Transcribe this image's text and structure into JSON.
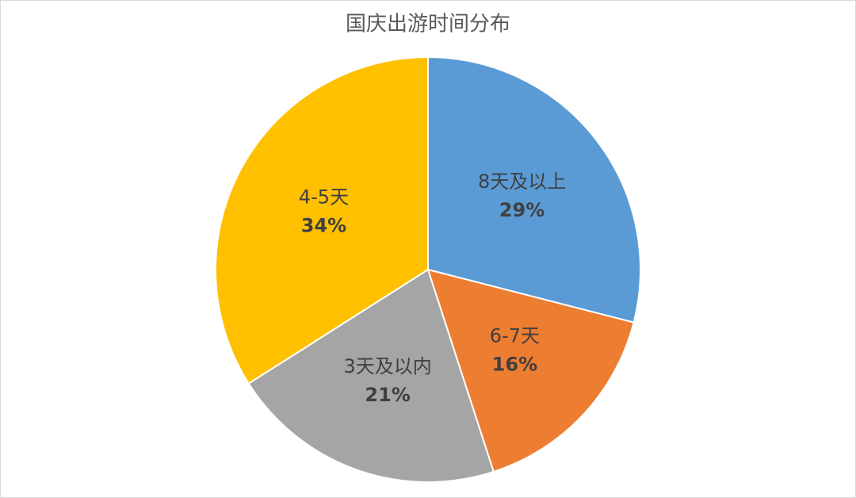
{
  "chart_data": {
    "type": "pie",
    "title": "国庆出游时间分布",
    "categories": [
      "8天及以上",
      "6-7天",
      "3天及以内",
      "4-5天"
    ],
    "values": [
      29,
      16,
      21,
      34
    ],
    "value_labels": [
      "29%",
      "16%",
      "21%",
      "34%"
    ],
    "colors": [
      "#5b9bd5",
      "#ed7d31",
      "#a5a5a5",
      "#ffc000"
    ]
  }
}
